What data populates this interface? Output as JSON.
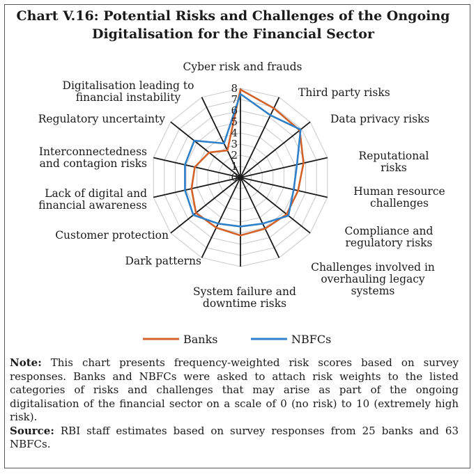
{
  "title_line1": "Chart V.16:  Potential Risks and Challenges of the Ongoing",
  "title_line2": "Digitalisation for the Financial Sector",
  "chart_data": {
    "type": "radar",
    "axis_max": 8,
    "axis_ticks": [
      "0",
      "1",
      "2",
      "3",
      "4",
      "5",
      "6",
      "7",
      "8"
    ],
    "categories": [
      "Cyber risk and frauds",
      "Third party risks",
      "Data privacy risks",
      "Reputational risks",
      "Human resource challenges",
      "Compliance and regulatory risks",
      "Challenges involved in overhauling legacy systems",
      "System failure and downtime risks",
      "Dark patterns",
      "Customer protection",
      "Lack of digital and financial awareness",
      "Interconnectedness and contagion risks",
      "Regulatory uncertainty",
      "Digitalisation leading to financial instability"
    ],
    "category_labels": [
      [
        "Cyber risk and frauds"
      ],
      [
        "Third party risks"
      ],
      [
        "Data privacy risks"
      ],
      [
        "Reputational",
        "risks"
      ],
      [
        "Human resource",
        "challenges"
      ],
      [
        "Compliance and",
        "regulatory risks"
      ],
      [
        "Challenges involved in",
        "overhauling legacy",
        "systems"
      ],
      [
        "System failure and",
        "downtime risks"
      ],
      [
        "Dark patterns"
      ],
      [
        "Customer protection"
      ],
      [
        "Lack of digital and",
        "financial awareness"
      ],
      [
        "Interconnectedness",
        "and contagion risks"
      ],
      [
        "Regulatory uncertainty"
      ],
      [
        "Digitalisation leading to",
        "financial instability"
      ]
    ],
    "series": [
      {
        "name": "Banks",
        "color": "#d2622a",
        "values": [
          7.9,
          6.9,
          6.8,
          5.8,
          5.3,
          5.3,
          5.1,
          5.2,
          5.0,
          5.1,
          4.5,
          4.2,
          3.6,
          2.7
        ]
      },
      {
        "name": "NBFCs",
        "color": "#2f80c8",
        "values": [
          7.5,
          6.2,
          6.9,
          5.2,
          4.9,
          5.5,
          4.6,
          4.4,
          4.6,
          5.4,
          5.1,
          5.1,
          5.3,
          3.4
        ]
      }
    ],
    "legend_position": "bottom",
    "grid": true
  },
  "note_label": "Note:",
  "note_text": " This chart presents frequency-weighted risk scores based on survey responses. Banks and NBFCs were asked to attach risk weights to the listed categories of risks and challenges that may arise as part of the ongoing digitalisation of the financial sector on a scale of 0 (no risk) to 10 (extremely high risk).",
  "source_label": "Source:",
  "source_text": " RBI staff estimates based on survey responses from 25 banks and 63 NBFCs."
}
